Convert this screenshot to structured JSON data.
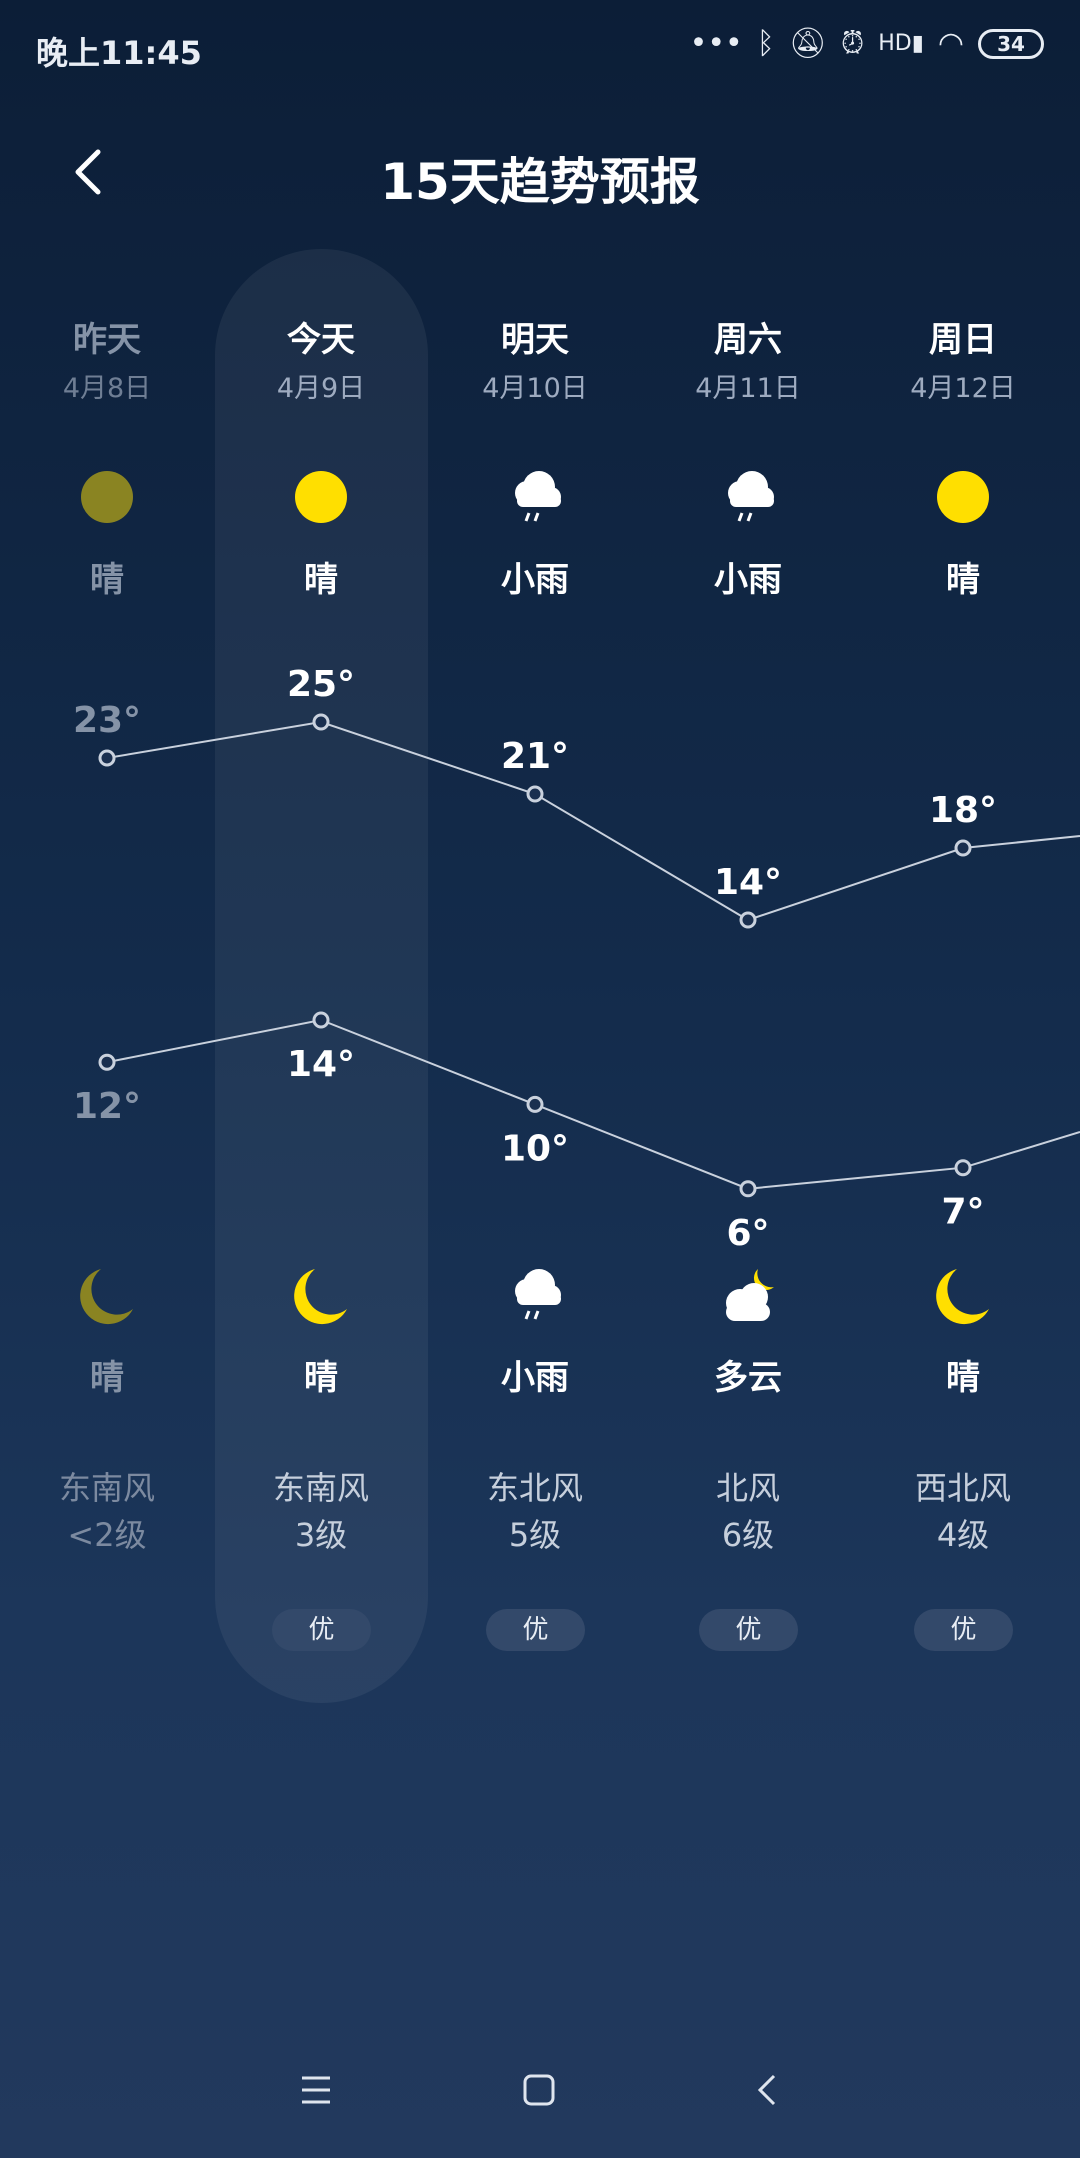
{
  "status_bar": {
    "time": "晚上11:45",
    "battery": "34",
    "icons": [
      "more-dots-icon",
      "bluetooth-icon",
      "bell-muted-icon",
      "alarm-icon",
      "hd-signal-icon",
      "wifi-icon",
      "battery-icon"
    ]
  },
  "header": {
    "title": "15天趋势预报",
    "back_icon": "chevron-left-icon"
  },
  "colors": {
    "sun": "#ffdf00",
    "past_icon": "#8a8422",
    "accent_text": "#ffffff",
    "past_text": "#8593a7"
  },
  "days": [
    {
      "name": "昨天",
      "date": "4月8日",
      "day_icon": "sun",
      "day_cond": "晴",
      "high": 23,
      "low": 12,
      "night_icon": "moon",
      "night_cond": "晴",
      "wind_dir": "东南风",
      "wind_level": "<2级",
      "aqi": "",
      "past": true
    },
    {
      "name": "今天",
      "date": "4月9日",
      "day_icon": "sun",
      "day_cond": "晴",
      "high": 25,
      "low": 14,
      "night_icon": "moon",
      "night_cond": "晴",
      "wind_dir": "东南风",
      "wind_level": "3级",
      "aqi": "优",
      "past": false
    },
    {
      "name": "明天",
      "date": "4月10日",
      "day_icon": "rain",
      "day_cond": "小雨",
      "high": 21,
      "low": 10,
      "night_icon": "rain",
      "night_cond": "小雨",
      "wind_dir": "东北风",
      "wind_level": "5级",
      "aqi": "优",
      "past": false
    },
    {
      "name": "周六",
      "date": "4月11日",
      "day_icon": "rain",
      "day_cond": "小雨",
      "high": 14,
      "low": 6,
      "night_icon": "cloudy-night",
      "night_cond": "多云",
      "wind_dir": "北风",
      "wind_level": "6级",
      "aqi": "优",
      "past": false
    },
    {
      "name": "周日",
      "date": "4月12日",
      "day_icon": "sun",
      "day_cond": "晴",
      "high": 18,
      "low": 7,
      "night_icon": "moon",
      "night_cond": "晴",
      "wind_dir": "西北风",
      "wind_level": "4级",
      "aqi": "优",
      "past": false
    }
  ],
  "nav": {
    "icons": [
      "menu-icon",
      "home-icon",
      "back-icon"
    ]
  }
}
